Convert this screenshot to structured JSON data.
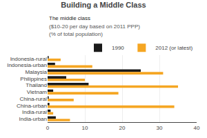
{
  "chart_data": {
    "type": "bar",
    "orientation": "horizontal",
    "title": "Building a Middle Class",
    "subtitle": [
      "The middle class",
      "($10-20 per day based on 2011 PPP)",
      "(% of total population)"
    ],
    "categories": [
      "Indonesia-rural",
      "Indonesia-urban",
      "Malaysia",
      "Philippines",
      "Thailand",
      "Vietnam",
      "China-rural",
      "China-urban",
      "India-rural",
      "India-urban"
    ],
    "series": [
      {
        "name": "1990",
        "color": "#1a1a1a",
        "values": [
          0.3,
          2.0,
          25.0,
          5.0,
          11.0,
          1.5,
          0.3,
          0.5,
          0.8,
          2.2
        ]
      },
      {
        "name": "2012 (or latest)",
        "color": "#f5a623",
        "values": [
          3.5,
          12.0,
          31.0,
          10.0,
          35.0,
          19.0,
          7.0,
          34.0,
          1.5,
          6.0
        ]
      }
    ],
    "xlim": [
      0,
      40
    ],
    "xticks": [
      0,
      10,
      20,
      30,
      40
    ],
    "grid": true,
    "legend": "upper right"
  }
}
